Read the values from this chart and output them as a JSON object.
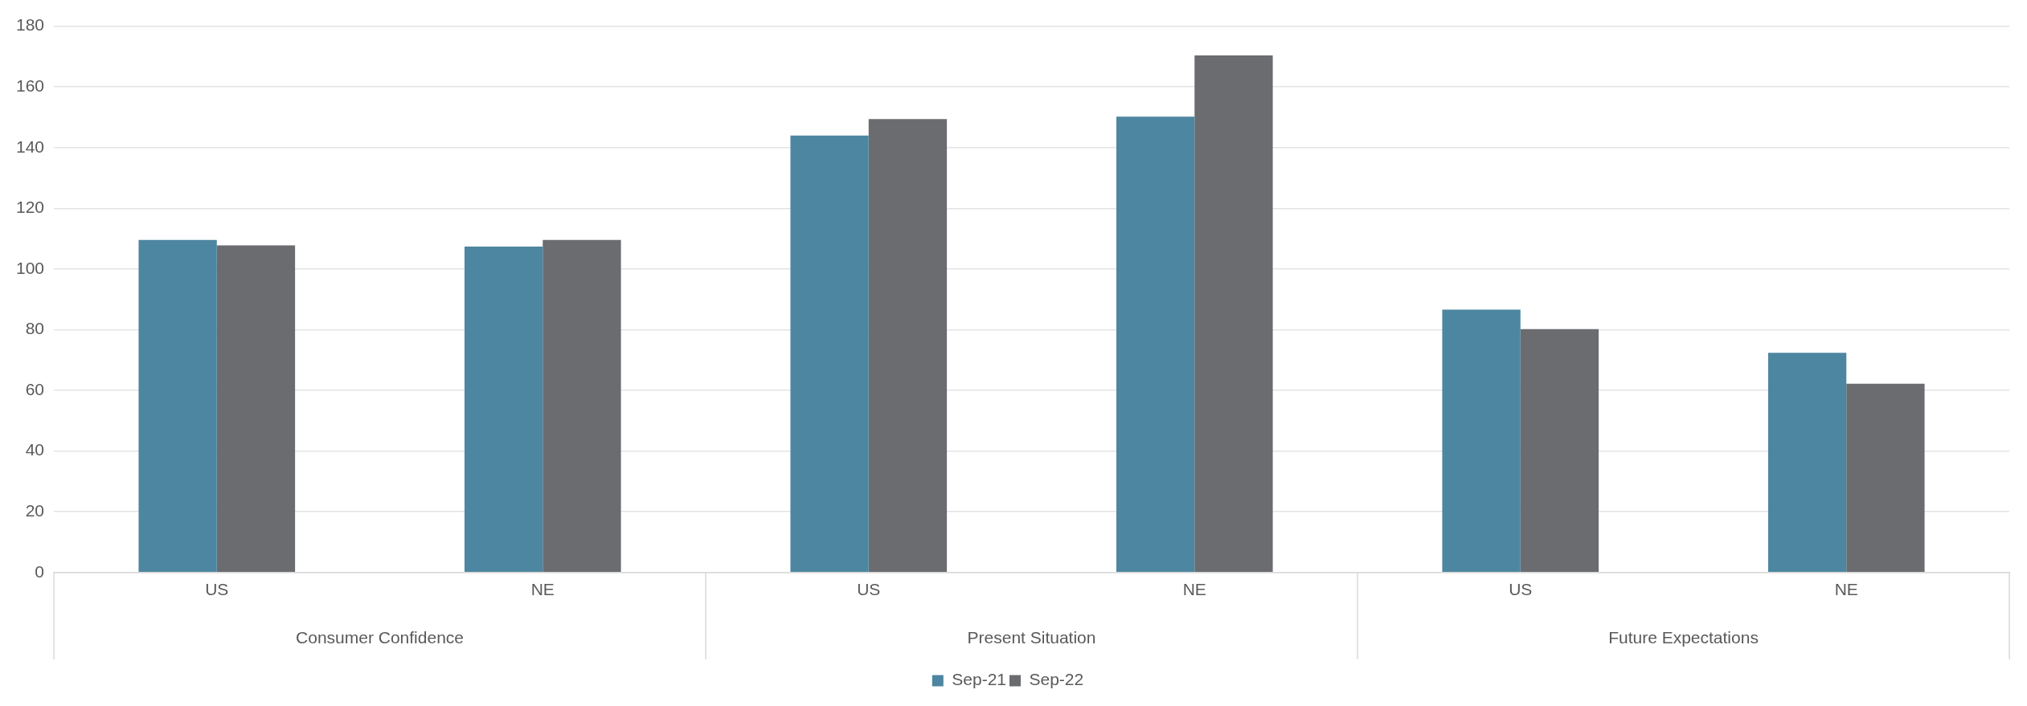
{
  "chart_data": {
    "type": "bar",
    "categories": [
      "US",
      "NE",
      "US",
      "NE",
      "US",
      "NE"
    ],
    "annotations": [
      "Consumer Confidence",
      "Present Situation",
      "Future Expectations"
    ],
    "series": [
      {
        "name": "Sep-21",
        "color": "#4d86a0",
        "values": [
          109.6,
          107.4,
          144,
          150.2,
          86.6,
          72.4
        ]
      },
      {
        "name": "Sep-22",
        "color": "#6b6c70",
        "values": [
          107.8,
          109.6,
          149.4,
          170.4,
          80.2,
          62.2
        ]
      }
    ],
    "ylim": [
      0,
      180
    ],
    "yticks": [
      0,
      20,
      40,
      60,
      80,
      100,
      120,
      140,
      160,
      180
    ],
    "grid": "y",
    "legend": "bottom"
  }
}
